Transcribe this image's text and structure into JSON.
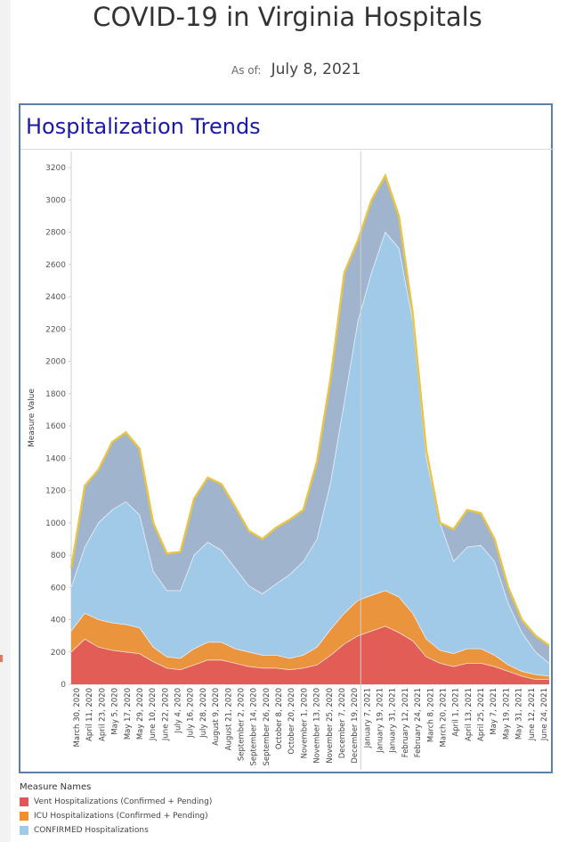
{
  "page": {
    "title": "COVID-19 in Virginia Hospitals",
    "as_of_label": "As of:",
    "as_of_date": "July 8, 2021"
  },
  "panel": {
    "title": "Hospitalization Trends"
  },
  "legend": {
    "title": "Measure Names",
    "items": [
      {
        "label": "Vent Hospitalizations (Confirmed + Pending)",
        "color": "#e15759"
      },
      {
        "label": "ICU Hospitalizations (Confirmed + Pending)",
        "color": "#f28e2b"
      },
      {
        "label": "CONFIRMED Hospitalizations",
        "color": "#a0cbe8"
      }
    ]
  },
  "chart_data": {
    "type": "area",
    "ylabel": "Measure Value",
    "ylim": [
      0,
      3300
    ],
    "yticks": [
      0,
      200,
      400,
      600,
      800,
      1000,
      1200,
      1400,
      1600,
      1800,
      2000,
      2200,
      2400,
      2600,
      2800,
      3000,
      3200
    ],
    "grid": false,
    "x_ticks": [
      "March 30, 2020",
      "April 11, 2020",
      "April 23, 2020",
      "May 5, 2020",
      "May 17, 2020",
      "May 29, 2020",
      "June 10, 2020",
      "June 22, 2020",
      "July 4, 2020",
      "July 16, 2020",
      "July 28, 2020",
      "August 9, 2020",
      "August 21, 2020",
      "September 2, 2020",
      "September 14, 2020",
      "September 26, 2020",
      "October 8, 2020",
      "October 20, 2020",
      "November 1, 2020",
      "November 13, 2020",
      "November 25, 2020",
      "December 7, 2020",
      "December 19, 2020",
      "January 7, 2021",
      "January 19, 2021",
      "January 31, 2021",
      "February 12, 2021",
      "February 24, 2021",
      "March 8, 2021",
      "March 20, 2021",
      "April 1, 2021",
      "April 13, 2021",
      "April 25, 2021",
      "May 7, 2021",
      "May 19, 2021",
      "May 31, 2021",
      "June 12, 2021",
      "June 24, 2021"
    ],
    "series": [
      {
        "name": "Vent Hospitalizations (Confirmed + Pending)",
        "color": "#e15759",
        "values": [
          200,
          280,
          230,
          210,
          200,
          190,
          140,
          100,
          90,
          120,
          150,
          150,
          130,
          110,
          100,
          100,
          90,
          100,
          120,
          180,
          250,
          300,
          330,
          360,
          320,
          270,
          170,
          130,
          110,
          130,
          130,
          110,
          80,
          50,
          30,
          30
        ]
      },
      {
        "name": "ICU Hospitalizations (Confirmed + Pending)",
        "color": "#f28e2b",
        "values": [
          330,
          440,
          400,
          380,
          370,
          350,
          230,
          170,
          160,
          220,
          260,
          260,
          220,
          200,
          180,
          180,
          160,
          180,
          230,
          340,
          440,
          520,
          550,
          580,
          540,
          440,
          280,
          210,
          190,
          220,
          220,
          180,
          120,
          80,
          60,
          50
        ]
      },
      {
        "name": "CONFIRMED Hospitalizations",
        "color": "#a0cbe8",
        "values": [
          600,
          850,
          1000,
          1080,
          1130,
          1050,
          700,
          580,
          580,
          800,
          880,
          830,
          720,
          610,
          560,
          620,
          680,
          760,
          900,
          1250,
          1750,
          2250,
          2550,
          2800,
          2700,
          2250,
          1400,
          1000,
          760,
          850,
          860,
          760,
          500,
          320,
          200,
          130
        ]
      }
    ],
    "total_line": {
      "color": "#e8c547",
      "values": [
        720,
        1230,
        1330,
        1500,
        1560,
        1460,
        1000,
        810,
        820,
        1150,
        1280,
        1240,
        1100,
        950,
        900,
        970,
        1020,
        1080,
        1380,
        1900,
        2550,
        2750,
        3000,
        3150,
        2900,
        2300,
        1450,
        1000,
        960,
        1080,
        1060,
        900,
        600,
        400,
        300,
        240
      ]
    }
  }
}
